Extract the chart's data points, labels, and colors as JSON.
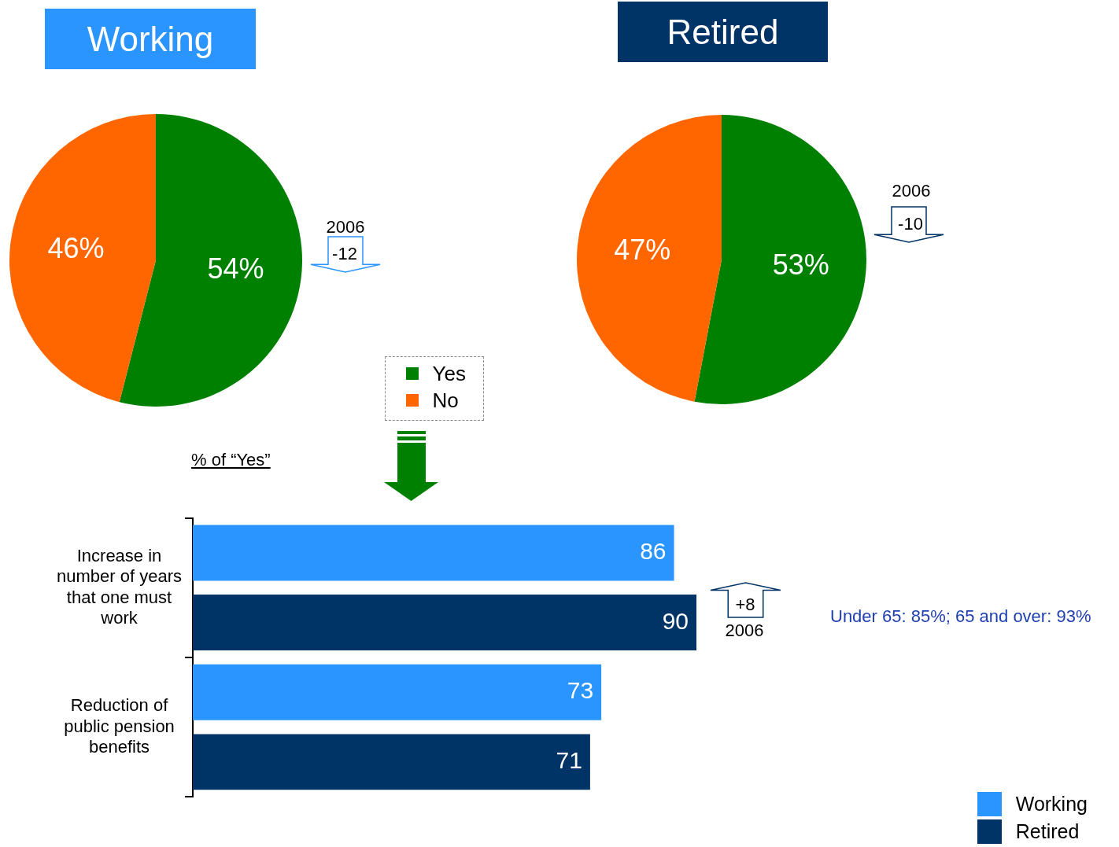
{
  "chart_data": [
    {
      "type": "pie",
      "title": "Working",
      "categories": [
        "Yes",
        "No"
      ],
      "values": [
        54,
        46
      ],
      "colors": [
        "#008000",
        "#ff6600"
      ],
      "value_labels": [
        "54%",
        "46%"
      ],
      "legend": "bottom right",
      "annotations": [
        "2006",
        "-12"
      ]
    },
    {
      "type": "pie",
      "title": "Retired",
      "values": [
        53,
        47
      ],
      "colors": [
        "#008000",
        "#ff6600"
      ],
      "value_labels": [
        "53%",
        "47%"
      ],
      "annotations": [
        "2006",
        "-10"
      ]
    },
    {
      "type": "bar",
      "orientation": "horizontal",
      "subtitle": "% of “Yes”",
      "categories": [
        "Increase in number of years that one must work",
        "Reduction of public pension benefits"
      ],
      "series": [
        {
          "name": "Working",
          "color": "#2a94ff",
          "values": [
            86,
            73
          ]
        },
        {
          "name": "Retired",
          "color": "#003366",
          "values": [
            90,
            71
          ]
        }
      ],
      "data_labels": true,
      "legend": "bottom right",
      "annotations": [
        "+8",
        "2006",
        "Under 65: 85%; 65 and over: 93%"
      ]
    }
  ]
}
